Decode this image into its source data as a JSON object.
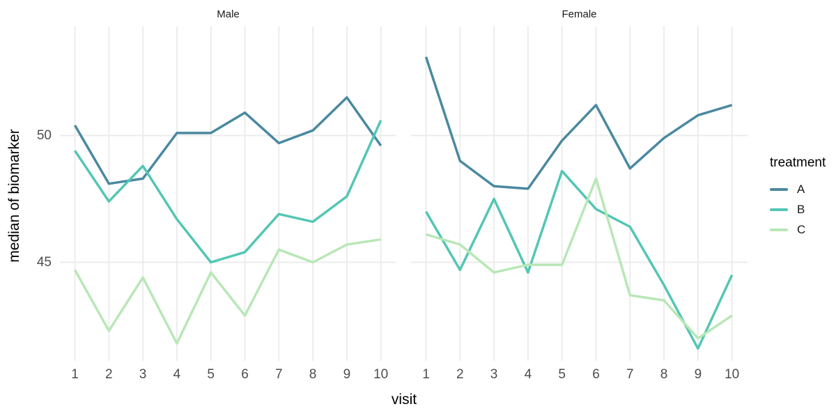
{
  "figure": {
    "y_axis_title": "median of biomarker",
    "x_axis_title": "visit",
    "grid_color": "#ececec",
    "tick_text_color": "#4d4d4d"
  },
  "legend": {
    "title": "treatment",
    "items": [
      {
        "label": "A",
        "color": "#4a89a0"
      },
      {
        "label": "B",
        "color": "#53c6b4"
      },
      {
        "label": "C",
        "color": "#b8e7b6"
      }
    ]
  },
  "chart_data": {
    "type": "line",
    "title": "",
    "xlabel": "visit",
    "ylabel": "median of biomarker",
    "x": [
      1,
      2,
      3,
      4,
      5,
      6,
      7,
      8,
      9,
      10
    ],
    "y_ticks": [
      50,
      45
    ],
    "ylim": [
      41.0,
      54.3
    ],
    "grid": true,
    "legend_title": "treatment",
    "legend_position": "right",
    "facets": [
      {
        "label": "Male",
        "series": [
          {
            "name": "A",
            "color": "#4a89a0",
            "values": [
              50.4,
              48.1,
              48.3,
              50.1,
              50.1,
              50.9,
              49.7,
              50.2,
              51.5,
              49.6
            ]
          },
          {
            "name": "B",
            "color": "#53c6b4",
            "values": [
              49.4,
              47.4,
              48.8,
              46.7,
              45.0,
              45.4,
              46.9,
              46.6,
              47.6,
              50.6
            ]
          },
          {
            "name": "C",
            "color": "#b8e7b6",
            "values": [
              44.7,
              42.3,
              44.4,
              41.8,
              44.6,
              42.9,
              45.5,
              45.0,
              45.7,
              45.9
            ]
          }
        ]
      },
      {
        "label": "Female",
        "series": [
          {
            "name": "A",
            "color": "#4a89a0",
            "values": [
              53.1,
              49.0,
              48.0,
              47.9,
              49.8,
              51.2,
              48.7,
              49.9,
              50.8,
              51.2
            ]
          },
          {
            "name": "B",
            "color": "#53c6b4",
            "values": [
              47.0,
              44.7,
              47.5,
              44.6,
              48.6,
              47.1,
              46.4,
              44.1,
              41.6,
              44.5
            ]
          },
          {
            "name": "C",
            "color": "#b8e7b6",
            "values": [
              46.1,
              45.7,
              44.6,
              44.9,
              44.9,
              48.3,
              43.7,
              43.5,
              42.0,
              42.9
            ]
          }
        ]
      }
    ]
  }
}
